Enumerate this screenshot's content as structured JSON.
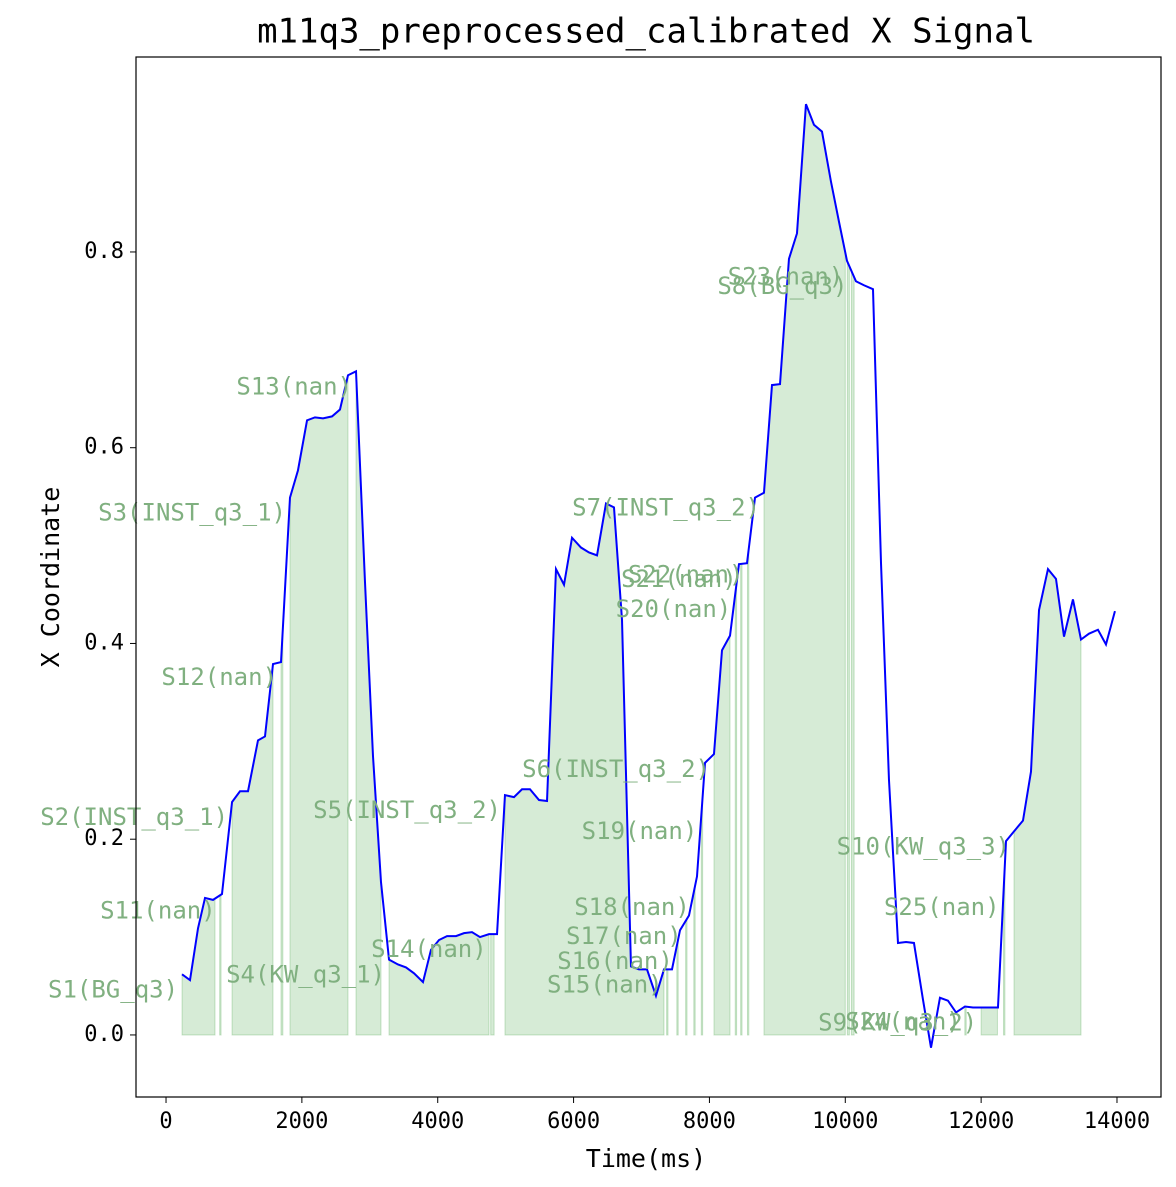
{
  "chart_data": {
    "type": "line",
    "title": "m11q3_preprocessed_calibrated X Signal",
    "x_label": "Time(ms)",
    "y_label": "X Coordinate",
    "xlim": [
      -442,
      14648
    ],
    "ylim": [
      -0.0634,
      0.9992
    ],
    "xticks": [
      0,
      2000,
      4000,
      6000,
      8000,
      10000,
      12000,
      14000
    ],
    "yticks": [
      {
        "value": 0,
        "label": "0.0"
      },
      {
        "value": 0.2,
        "label": "0.2"
      },
      {
        "value": 0.4,
        "label": "0.4"
      },
      {
        "value": 0.6,
        "label": "0.6"
      },
      {
        "value": 0.8,
        "label": "0.8"
      }
    ],
    "series": [
      {
        "name": "X",
        "color": "#0000ff",
        "x": [
          236,
          353,
          471,
          574,
          692,
          824,
          972,
          1089,
          1207,
          1354,
          1457,
          1575,
          1693,
          1825,
          1943,
          2076,
          2193,
          2311,
          2444,
          2561,
          2679,
          2797,
          2929,
          3047,
          3165,
          3283,
          3415,
          3533,
          3651,
          3783,
          3901,
          4019,
          4137,
          4269,
          4387,
          4505,
          4622,
          4755,
          4873,
          4990,
          5123,
          5241,
          5358,
          5491,
          5609,
          5741,
          5859,
          5977,
          6109,
          6227,
          6345,
          6477,
          6595,
          6713,
          6845,
          6963,
          7081,
          7213,
          7331,
          7449,
          7567,
          7699,
          7817,
          7935,
          8067,
          8185,
          8303,
          8435,
          8553,
          8671,
          8803,
          8921,
          9039,
          9171,
          9289,
          9421,
          9539,
          9657,
          9789,
          9907,
          10025,
          10157,
          10275,
          10408,
          10526,
          10643,
          10776,
          10894,
          11011,
          11144,
          11262,
          11394,
          11512,
          11630,
          11762,
          11880,
          11998,
          12130,
          12248,
          12366,
          12484,
          12616,
          12734,
          12852,
          12984,
          13102,
          13220,
          13352,
          13470,
          13588,
          13720,
          13838,
          13970
        ],
        "values": [
          0.062,
          0.056,
          0.109,
          0.14,
          0.138,
          0.144,
          0.238,
          0.249,
          0.249,
          0.301,
          0.305,
          0.379,
          0.381,
          0.549,
          0.577,
          0.628,
          0.631,
          0.63,
          0.632,
          0.639,
          0.674,
          0.678,
          0.463,
          0.285,
          0.156,
          0.077,
          0.072,
          0.069,
          0.063,
          0.054,
          0.087,
          0.097,
          0.101,
          0.101,
          0.104,
          0.105,
          0.1,
          0.103,
          0.103,
          0.245,
          0.243,
          0.251,
          0.251,
          0.24,
          0.239,
          0.476,
          0.46,
          0.508,
          0.498,
          0.493,
          0.49,
          0.543,
          0.539,
          0.424,
          0.07,
          0.067,
          0.067,
          0.04,
          0.067,
          0.067,
          0.107,
          0.122,
          0.162,
          0.278,
          0.287,
          0.393,
          0.408,
          0.481,
          0.482,
          0.549,
          0.554,
          0.664,
          0.665,
          0.793,
          0.819,
          0.951,
          0.93,
          0.923,
          0.872,
          0.831,
          0.791,
          0.77,
          0.766,
          0.762,
          0.482,
          0.261,
          0.094,
          0.095,
          0.094,
          0.036,
          -0.013,
          0.038,
          0.035,
          0.023,
          0.029,
          0.028,
          0.028,
          0.028,
          0.028,
          0.198,
          0.208,
          0.219,
          0.269,
          0.434,
          0.476,
          0.466,
          0.407,
          0.445,
          0.404,
          0.41,
          0.414,
          0.399,
          0.433
        ]
      }
    ],
    "segments": [
      {
        "label": "S1(BG_q3)",
        "start": 236,
        "end": 721
      },
      {
        "label": "S2(INST_q3_1)",
        "start": 972,
        "end": 1575
      },
      {
        "label": "S3(INST_q3_1)",
        "start": 1825,
        "end": 2679
      },
      {
        "label": "S4(KW_q3_1)",
        "start": 3283,
        "end": 4755
      },
      {
        "label": "S5(INST_q3_2)",
        "start": 4990,
        "end": 7331
      },
      {
        "label": "S6(INST_q3_2)",
        "start": 8067,
        "end": 8303
      },
      {
        "label": "S7(INST_q3_2)",
        "start": 8803,
        "end": 10000
      },
      {
        "label": "S8(BG_q3)",
        "start": 10090,
        "end": 10130
      },
      {
        "label": "S9(KW_q3_2)",
        "start": 12000,
        "end": 12240
      },
      {
        "label": "S10(KW_q3_3)",
        "start": 12484,
        "end": 13470
      },
      {
        "label": "S11(nan)",
        "start": 790,
        "end": 810
      },
      {
        "label": "S12(nan)",
        "start": 1693,
        "end": 1720
      },
      {
        "label": "S13(nan)",
        "start": 2797,
        "end": 3165
      },
      {
        "label": "S14(nan)",
        "start": 4780,
        "end": 4830
      },
      {
        "label": "S15(nan)",
        "start": 7370,
        "end": 7390
      },
      {
        "label": "S16(nan)",
        "start": 7520,
        "end": 7540
      },
      {
        "label": "S17(nan)",
        "start": 7650,
        "end": 7670
      },
      {
        "label": "S18(nan)",
        "start": 7770,
        "end": 7790
      },
      {
        "label": "S19(nan)",
        "start": 7880,
        "end": 7900
      },
      {
        "label": "S20(nan)",
        "start": 8380,
        "end": 8400
      },
      {
        "label": "S21(nan)",
        "start": 8460,
        "end": 8480
      },
      {
        "label": "S22(nan)",
        "start": 8560,
        "end": 8580
      },
      {
        "label": "S23(nan)",
        "start": 10030,
        "end": 10060
      },
      {
        "label": "S24(nan)",
        "start": 11760,
        "end": 11780
      },
      {
        "label": "S25(nan)",
        "start": 12330,
        "end": 12350
      }
    ]
  }
}
